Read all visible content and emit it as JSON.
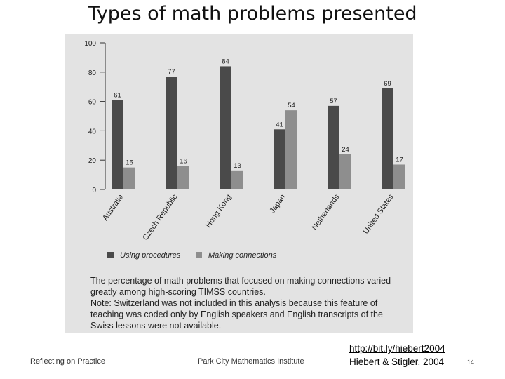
{
  "slide": {
    "title": "Types of math problems presented",
    "footer_left": "Reflecting on Practice",
    "footer_center": "Park City Mathematics Institute",
    "link": "http://bit.ly/hiebert2004",
    "citation": "Hiebert & Stigler, 2004",
    "page_number": "14"
  },
  "caption": {
    "line1": "The percentage of math problems that focused on making connections varied greatly among high-scoring TIMSS countries.",
    "line2": "Note: Switzerland was not included in this analysis because this feature of teaching was coded only by English speakers and English transcripts of the Swiss lessons were not available."
  },
  "colors": {
    "bar_procedures": "#4a4a4a",
    "bar_connections": "#8e8e8e",
    "figure_bg": "#e3e3e3"
  },
  "chart_data": {
    "type": "bar",
    "title": "",
    "xlabel": "",
    "ylabel": "",
    "categories": [
      "Australia",
      "Czech Republic",
      "Hong Kong",
      "Japan",
      "Netherlands",
      "United States"
    ],
    "series": [
      {
        "name": "Using procedures",
        "values": [
          61,
          77,
          84,
          41,
          57,
          69
        ]
      },
      {
        "name": "Making connections",
        "values": [
          15,
          16,
          13,
          54,
          24,
          17
        ]
      }
    ],
    "ylim": [
      0,
      100
    ],
    "yticks": [
      0,
      20,
      40,
      60,
      80,
      100
    ],
    "grid": false,
    "legend": "bottom-left",
    "data_labels": true
  }
}
